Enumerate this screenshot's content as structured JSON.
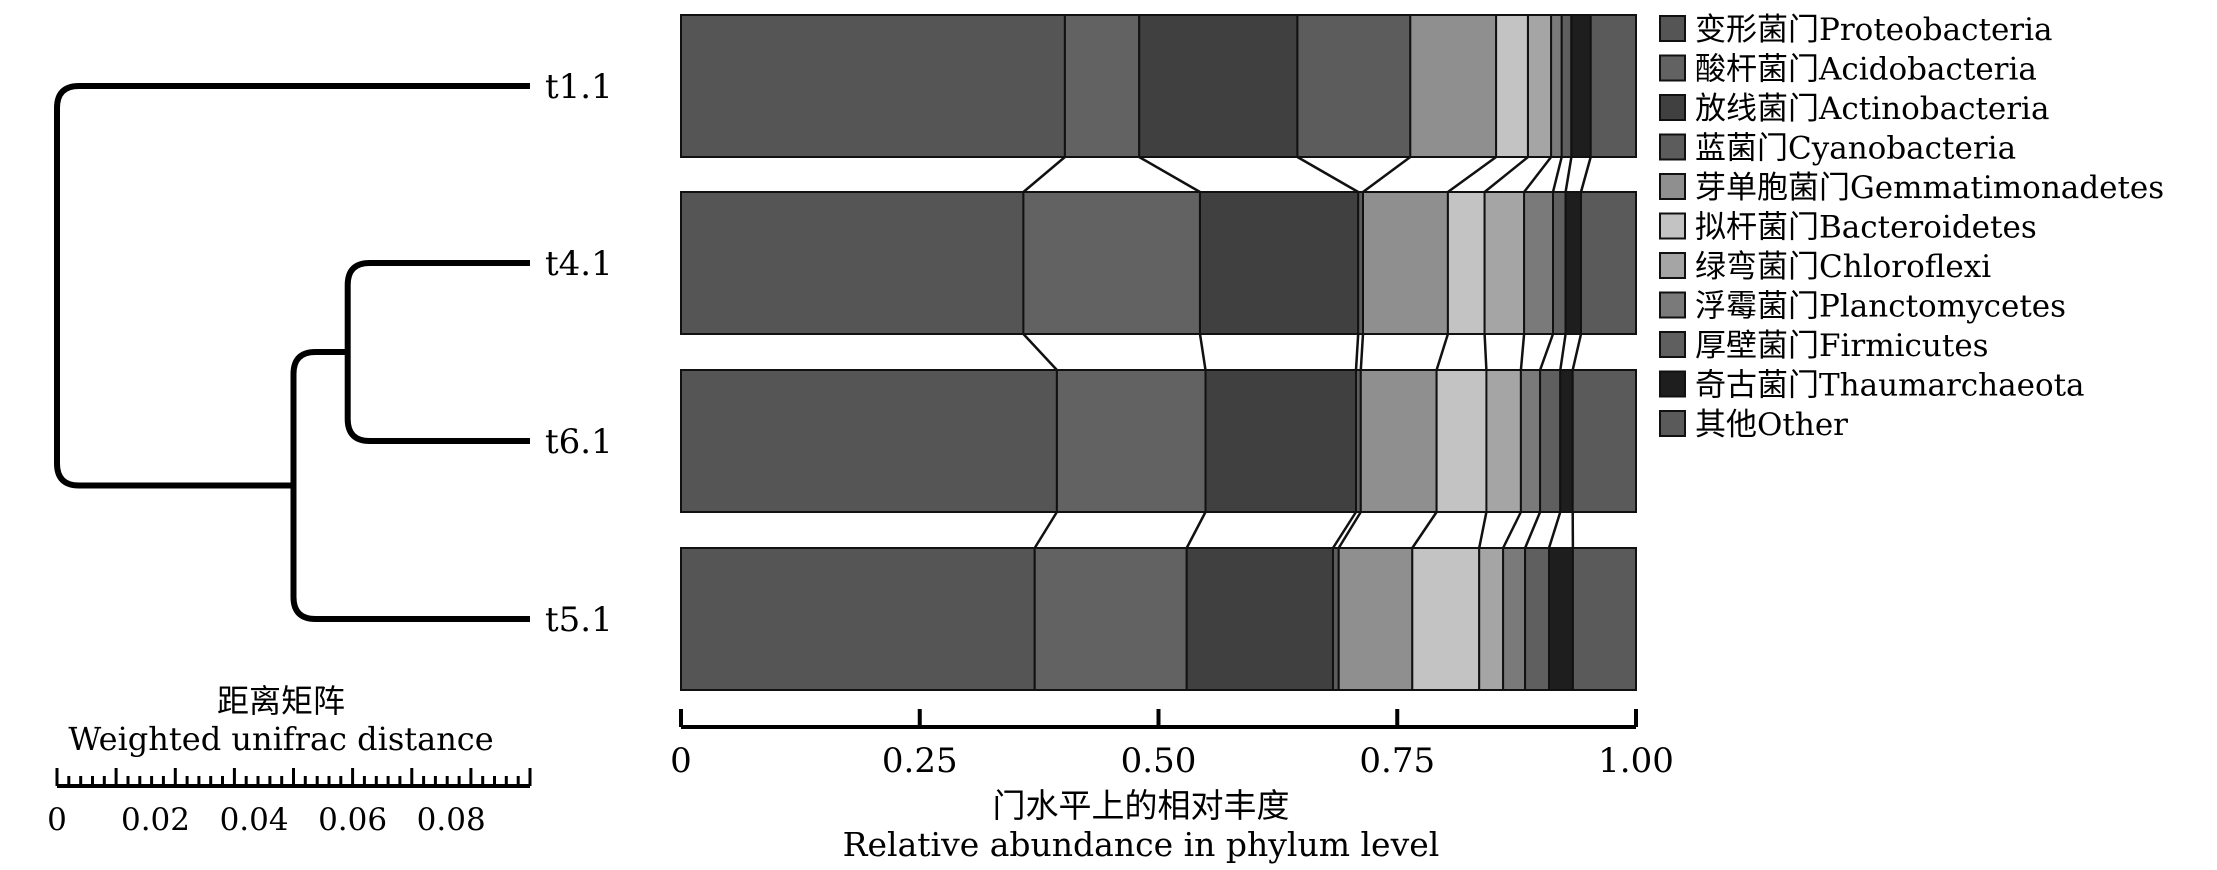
{
  "chart_data": {
    "type": "bar",
    "orientation": "horizontal",
    "stacked": true,
    "samples": [
      "t1.1",
      "t4.1",
      "t6.1",
      "t5.1"
    ],
    "xlabel_cn": "门水平上的相对丰度",
    "xlabel": "Relative abundance in phylum level",
    "xlim": [
      0,
      1
    ],
    "xticks": [
      "0",
      "0.25",
      "0.50",
      "0.75",
      "1.00"
    ],
    "xtick_values": [
      0,
      0.25,
      0.5,
      0.75,
      1.0
    ],
    "legend_position": "right",
    "series": [
      {
        "name": "变形菌门Proteobacteria",
        "color": "#555555",
        "values": [
          0.398,
          0.355,
          0.392,
          0.37
        ]
      },
      {
        "name": "酸杆菌门Acidobacteria",
        "color": "#626262",
        "values": [
          0.077,
          0.183,
          0.155,
          0.159
        ]
      },
      {
        "name": "放线菌门Actinobacteria",
        "color": "#404040",
        "values": [
          0.164,
          0.164,
          0.157,
          0.153
        ]
      },
      {
        "name": "蓝菌门Cyanobacteria",
        "color": "#5c5c5c",
        "values": [
          0.117,
          0.005,
          0.005,
          0.006
        ]
      },
      {
        "name": "芽单胞菌门Gemmatimonadetes",
        "color": "#8f8f8f",
        "values": [
          0.089,
          0.088,
          0.079,
          0.077
        ]
      },
      {
        "name": "拟杆菌门Bacteroidetes",
        "color": "#c3c3c3",
        "values": [
          0.033,
          0.038,
          0.052,
          0.07
        ]
      },
      {
        "name": "绿弯菌门Chloroflexi",
        "color": "#a5a5a5",
        "values": [
          0.024,
          0.041,
          0.036,
          0.025
        ]
      },
      {
        "name": "浮霉菌门Planctomycetes",
        "color": "#7a7a7a",
        "values": [
          0.011,
          0.03,
          0.02,
          0.023
        ]
      },
      {
        "name": "厚壁菌门Firmicutes",
        "color": "#5f5f5f",
        "values": [
          0.01,
          0.013,
          0.021,
          0.025
        ]
      },
      {
        "name": "奇古菌门Thaumarchaeota",
        "color": "#1e1e1e",
        "values": [
          0.02,
          0.016,
          0.013,
          0.025
        ]
      },
      {
        "name": "其他Other",
        "color": "#5a5a5a",
        "values": [
          0.047,
          0.057,
          0.066,
          0.066
        ]
      }
    ],
    "dendrogram": {
      "title_cn": "距离矩阵",
      "title": "Weighted unifrac distance",
      "scale_ticks": [
        "0",
        "0.02",
        "0.04",
        "0.06",
        "0.08"
      ],
      "scale_tick_values": [
        0,
        0.02,
        0.04,
        0.06,
        0.08
      ],
      "scale_max": 0.096,
      "merges": [
        {
          "members": [
            "t4.1",
            "t6.1"
          ],
          "height": 0.037
        },
        {
          "members": [
            "t4.1",
            "t6.1",
            "t5.1"
          ],
          "height": 0.048
        },
        {
          "members": [
            "t1.1",
            "t4.1",
            "t6.1",
            "t5.1"
          ],
          "height": 0.096
        }
      ]
    }
  }
}
